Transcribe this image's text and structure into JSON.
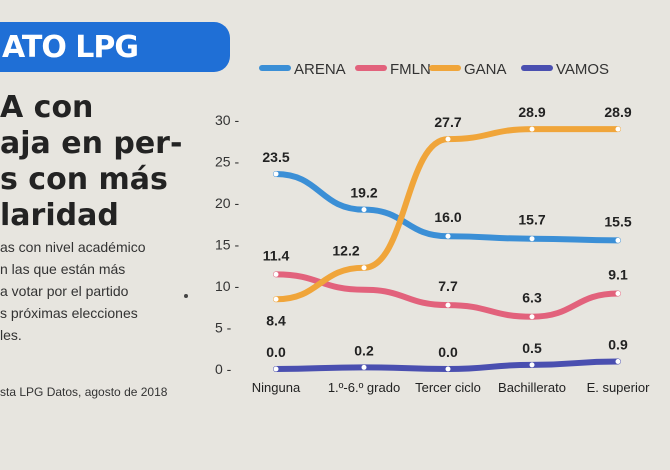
{
  "header": {
    "banner": "ATO LPG",
    "headline": [
      "A con",
      "aja en per-",
      "s con más",
      "laridad"
    ],
    "body": [
      "as con nivel académico",
      "n las que están más",
      "a votar por el partido",
      "s próximas elecciones",
      "les."
    ],
    "source": "sta LPG Datos, agosto de 2018"
  },
  "chart_data": {
    "type": "line",
    "categories": [
      "Ninguna",
      "1.º-6.º grado",
      "Tercer ciclo",
      "Bachillerato",
      "E. superior"
    ],
    "series": [
      {
        "name": "ARENA",
        "color": "#3b8fd6",
        "values": [
          23.5,
          19.2,
          16.0,
          15.7,
          15.5
        ]
      },
      {
        "name": "FMLN",
        "color": "#e2627c",
        "values": [
          11.4,
          null,
          7.7,
          6.3,
          9.1
        ]
      },
      {
        "name": "GANA",
        "color": "#f0a53a",
        "values": [
          8.4,
          12.2,
          27.7,
          28.9,
          28.9
        ]
      },
      {
        "name": "VAMOS",
        "color": "#4a4fb0",
        "values": [
          0.0,
          0.2,
          0.0,
          0.5,
          0.9
        ]
      }
    ],
    "ylim": [
      0,
      30
    ],
    "yticks": [
      "0",
      "5",
      "10",
      "15",
      "20",
      "25",
      "30"
    ],
    "legend": "top"
  }
}
